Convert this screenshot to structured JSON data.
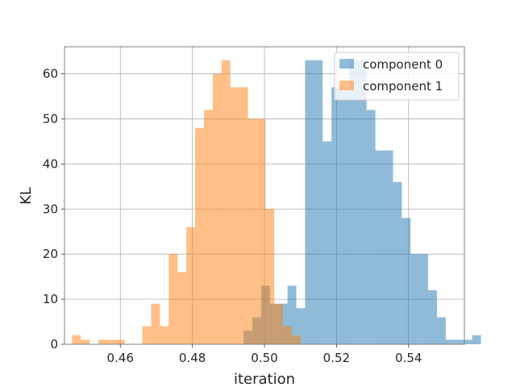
{
  "chart_data": {
    "type": "histogram",
    "xlabel": "iteration",
    "ylabel": "KL",
    "xlim": [
      0.4445,
      0.5555
    ],
    "ylim": [
      0,
      66
    ],
    "x_ticks": [
      0.46,
      0.48,
      0.5,
      0.52,
      0.54
    ],
    "x_tick_labels": [
      "0.46",
      "0.48",
      "0.50",
      "0.52",
      "0.54"
    ],
    "y_ticks": [
      0,
      10,
      20,
      30,
      40,
      50,
      60
    ],
    "y_tick_labels": [
      "0",
      "10",
      "20",
      "30",
      "40",
      "50",
      "60"
    ],
    "grid": true,
    "legend_position": "upper right",
    "series": [
      {
        "name": "component 0",
        "color": "#1f77b4",
        "alpha": 0.5,
        "bin_start": 0.4942,
        "bin_width": 0.00244,
        "counts": [
          3,
          6,
          13,
          9,
          9,
          13,
          8,
          63,
          63,
          45,
          57,
          57,
          63,
          63,
          52,
          43,
          43,
          36,
          28,
          20,
          20,
          12,
          6,
          1,
          1,
          1,
          2
        ]
      },
      {
        "name": "component 1",
        "color": "#ff7f0e",
        "alpha": 0.5,
        "bin_start": 0.4466,
        "bin_width": 0.00244,
        "counts": [
          2,
          1,
          0,
          1,
          1,
          1,
          0,
          0,
          4,
          9,
          4,
          20,
          16,
          26,
          48,
          52,
          60,
          63,
          57,
          57,
          50,
          50,
          30,
          9,
          4,
          2,
          0
        ]
      }
    ]
  }
}
